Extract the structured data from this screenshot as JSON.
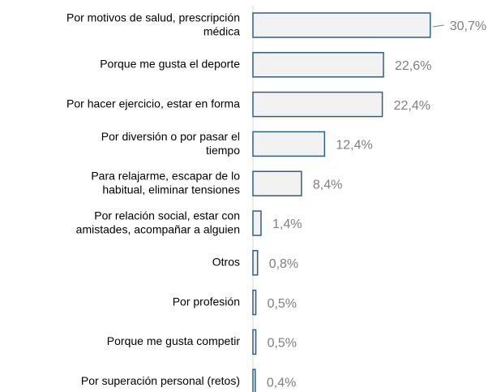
{
  "chart_data": {
    "type": "bar",
    "orientation": "horizontal",
    "categories": [
      "Por motivos de salud, prescripción\nmédica",
      "Porque me gusta el deporte",
      "Por hacer ejercicio, estar en forma",
      "Por diversión o por pasar el\ntiempo",
      "Para relajarme, escapar de lo\nhabitual, eliminar tensiones",
      "Por relación social, estar con\namistades, acompañar a alguien",
      "Otros",
      "Por profesión",
      "Porque me gusta competir",
      "Por superación personal (retos)"
    ],
    "values": [
      30.7,
      22.6,
      22.4,
      12.4,
      8.4,
      1.4,
      0.8,
      0.5,
      0.5,
      0.4
    ],
    "value_labels": [
      "30,7%",
      "22,6%",
      "22,4%",
      "12,4%",
      "8,4%",
      "1,4%",
      "0,8%",
      "0,5%",
      "0,5%",
      "0,4%"
    ],
    "color": "#f2f2f2",
    "edge_color": "#2e5f84",
    "xlim": [
      0,
      40
    ]
  }
}
